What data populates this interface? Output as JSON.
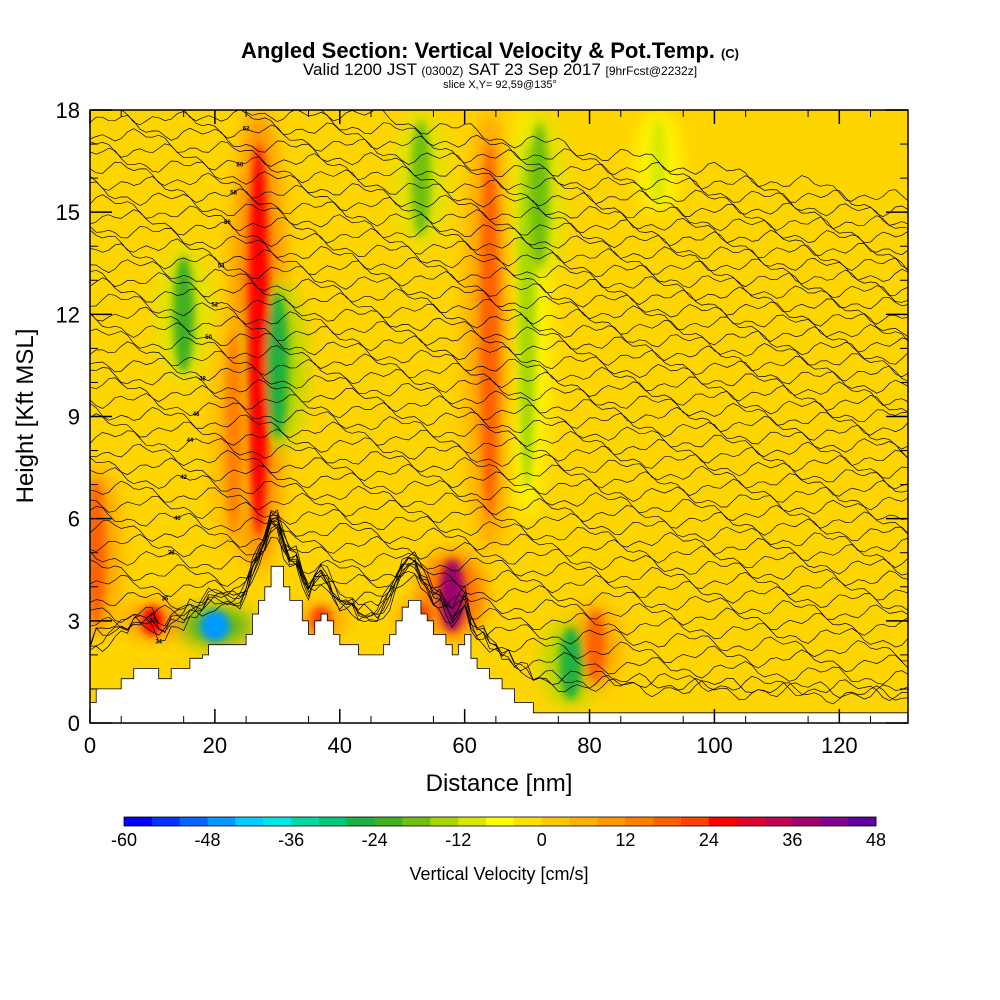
{
  "chart_data": {
    "type": "heatmap",
    "title": "Angled Section: Vertical Velocity & Pot.Temp.",
    "title_unit": "(C)",
    "subtitle_parts": [
      "Valid 1200 JST ",
      "(0300Z)",
      " SAT 23 Sep 2017 ",
      "[9hrFcst@2232z]"
    ],
    "slice_text": "slice X,Y= 92,59@135°",
    "xlabel": "Distance [nm]",
    "ylabel": "Height [Kft MSL]",
    "xlim": [
      0,
      131
    ],
    "ylim": [
      0,
      18
    ],
    "x_ticks": [
      0,
      20,
      40,
      60,
      80,
      100,
      120
    ],
    "y_ticks": [
      0,
      3,
      6,
      9,
      12,
      15,
      18
    ],
    "colorbar": {
      "title": "Vertical Velocity [cm/s]",
      "min": -60,
      "max": 48,
      "step": 4,
      "ticks": [
        -60,
        -48,
        -36,
        -24,
        -12,
        0,
        12,
        24,
        36,
        48
      ],
      "colors": [
        "#0000ff",
        "#0033ff",
        "#0066ff",
        "#0099ff",
        "#00ccff",
        "#00e6e6",
        "#00d9a0",
        "#00c878",
        "#20b040",
        "#40b020",
        "#70c010",
        "#a8d800",
        "#d8e800",
        "#ffff00",
        "#ffe000",
        "#ffc800",
        "#ffb000",
        "#ff9800",
        "#ff8000",
        "#ff6000",
        "#ff4000",
        "#ff0000",
        "#e00030",
        "#c00050",
        "#a00070",
        "#800090",
        "#6000a0"
      ]
    },
    "terrain": {
      "x": [
        0,
        1,
        2,
        5,
        6,
        7,
        8,
        9,
        10,
        11,
        12,
        13,
        14,
        15,
        16,
        17,
        18,
        19,
        20,
        21,
        22,
        23,
        24,
        25,
        26,
        27,
        28,
        29,
        30,
        31,
        32,
        33,
        34,
        35,
        36,
        37,
        38,
        39,
        40,
        41,
        42,
        43,
        44,
        45,
        46,
        47,
        48,
        49,
        50,
        51,
        52,
        53,
        54,
        55,
        56,
        57,
        58,
        59,
        60,
        61,
        62,
        63,
        64,
        65,
        66,
        67,
        68,
        69,
        70,
        71,
        72,
        73,
        74,
        131
      ],
      "height": [
        0.6,
        1.0,
        1.0,
        1.3,
        1.3,
        1.6,
        1.6,
        1.6,
        1.6,
        1.3,
        1.3,
        1.6,
        1.6,
        1.6,
        1.9,
        1.9,
        2.0,
        2.3,
        2.3,
        2.3,
        2.3,
        2.3,
        2.3,
        2.6,
        3.2,
        3.6,
        4.0,
        4.6,
        4.6,
        4.0,
        3.6,
        3.6,
        3.0,
        2.6,
        3.0,
        3.2,
        3.0,
        2.6,
        2.3,
        2.3,
        2.3,
        2.0,
        2.0,
        2.0,
        2.0,
        2.3,
        2.6,
        3.0,
        3.4,
        3.6,
        3.6,
        3.2,
        3.0,
        2.6,
        2.6,
        2.3,
        2.0,
        2.3,
        2.6,
        1.9,
        1.6,
        1.6,
        1.3,
        1.3,
        1.0,
        1.0,
        0.6,
        0.6,
        0.6,
        0.3,
        0.3,
        0.3,
        0.3,
        0.3
      ]
    },
    "theta_isotherms_C": [
      32,
      33,
      34,
      35,
      36,
      37,
      38,
      39,
      40,
      41,
      42,
      43,
      44,
      45,
      46,
      47,
      48,
      49,
      50,
      51,
      52,
      53,
      54,
      55,
      56,
      57,
      58,
      59,
      60,
      61,
      62,
      63,
      64,
      65,
      66,
      67,
      68,
      69,
      70,
      71,
      72,
      73,
      74,
      75,
      76,
      77,
      78,
      79,
      80
    ],
    "contour_label_values": [
      "32",
      "34",
      "36",
      "38",
      "40",
      "42",
      "44",
      "46",
      "48",
      "50",
      "52",
      "54",
      "56",
      "58",
      "60",
      "62",
      "64",
      "66",
      "68",
      "70"
    ],
    "vertical_velocity_features": [
      {
        "x": 27,
        "height_range": [
          4.5,
          18
        ],
        "value": 24
      },
      {
        "x": 30,
        "height_range": [
          8,
          13
        ],
        "value": -28
      },
      {
        "x": 15,
        "height_range": [
          10,
          14
        ],
        "value": -24
      },
      {
        "x": 58,
        "height_range": [
          2.5,
          5
        ],
        "value": 36
      },
      {
        "x": 20,
        "height_range": [
          2.3,
          3.4
        ],
        "value": -48
      },
      {
        "x": 10,
        "height_range": [
          2.5,
          3.5
        ],
        "value": 24
      },
      {
        "x": 37,
        "height_range": [
          2.5,
          3.5
        ],
        "value": 20
      },
      {
        "x": 53,
        "height_range": [
          2.5,
          3.6
        ],
        "value": 20
      },
      {
        "x": 70,
        "height_range": [
          6,
          18
        ],
        "value": -16
      },
      {
        "x": 72,
        "height_range": [
          13,
          18
        ],
        "value": -20
      },
      {
        "x": 77,
        "height_range": [
          0.5,
          3
        ],
        "value": -28
      },
      {
        "x": 81,
        "height_range": [
          1,
          3.5
        ],
        "value": 16
      },
      {
        "x": 91,
        "height_range": [
          15,
          18
        ],
        "value": -12
      },
      {
        "x": 53,
        "height_range": [
          14,
          18
        ],
        "value": -20
      },
      {
        "x": 64,
        "height_range": [
          5,
          18
        ],
        "value": 16
      },
      {
        "x": 1,
        "height_range": [
          2.5,
          7.5
        ],
        "value": 16
      },
      {
        "x": 23,
        "height_range": [
          5,
          12
        ],
        "value": 12
      }
    ]
  }
}
